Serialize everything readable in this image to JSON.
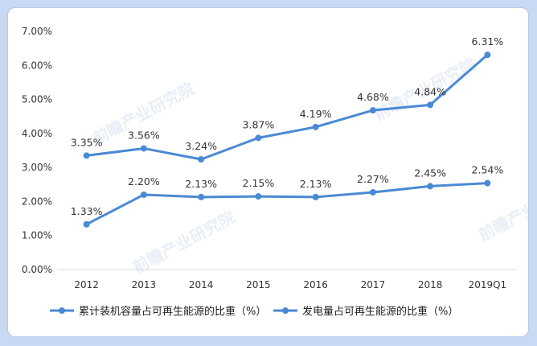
{
  "chart_data": {
    "type": "line",
    "categories": [
      "2012",
      "2013",
      "2014",
      "2015",
      "2016",
      "2017",
      "2018",
      "2019Q1"
    ],
    "ylim": [
      0,
      7
    ],
    "yticks": [
      "0.00%",
      "1.00%",
      "2.00%",
      "3.00%",
      "4.00%",
      "5.00%",
      "6.00%",
      "7.00%"
    ],
    "grid": false,
    "legend_position": "bottom",
    "series": [
      {
        "name": "累计装机容量占可再生能源的比重（%）",
        "values": [
          3.35,
          3.56,
          3.24,
          3.87,
          4.19,
          4.68,
          4.84,
          6.31
        ],
        "labels": [
          "3.35%",
          "3.56%",
          "3.24%",
          "3.87%",
          "4.19%",
          "4.68%",
          "4.84%",
          "6.31%"
        ],
        "color": "#4a8ad4"
      },
      {
        "name": "发电量占可再生能源的比重（%）",
        "values": [
          1.33,
          2.2,
          2.13,
          2.15,
          2.13,
          2.27,
          2.45,
          2.54
        ],
        "labels": [
          "1.33%",
          "2.20%",
          "2.13%",
          "2.15%",
          "2.13%",
          "2.27%",
          "2.45%",
          "2.54%"
        ],
        "color": "#4a8ad4"
      }
    ]
  },
  "watermark": {
    "text": "前瞻产业研究院"
  },
  "colors": {
    "series": "#4a8ad4",
    "frame": "#c9d9f3",
    "axis": "#d9d9d9"
  }
}
